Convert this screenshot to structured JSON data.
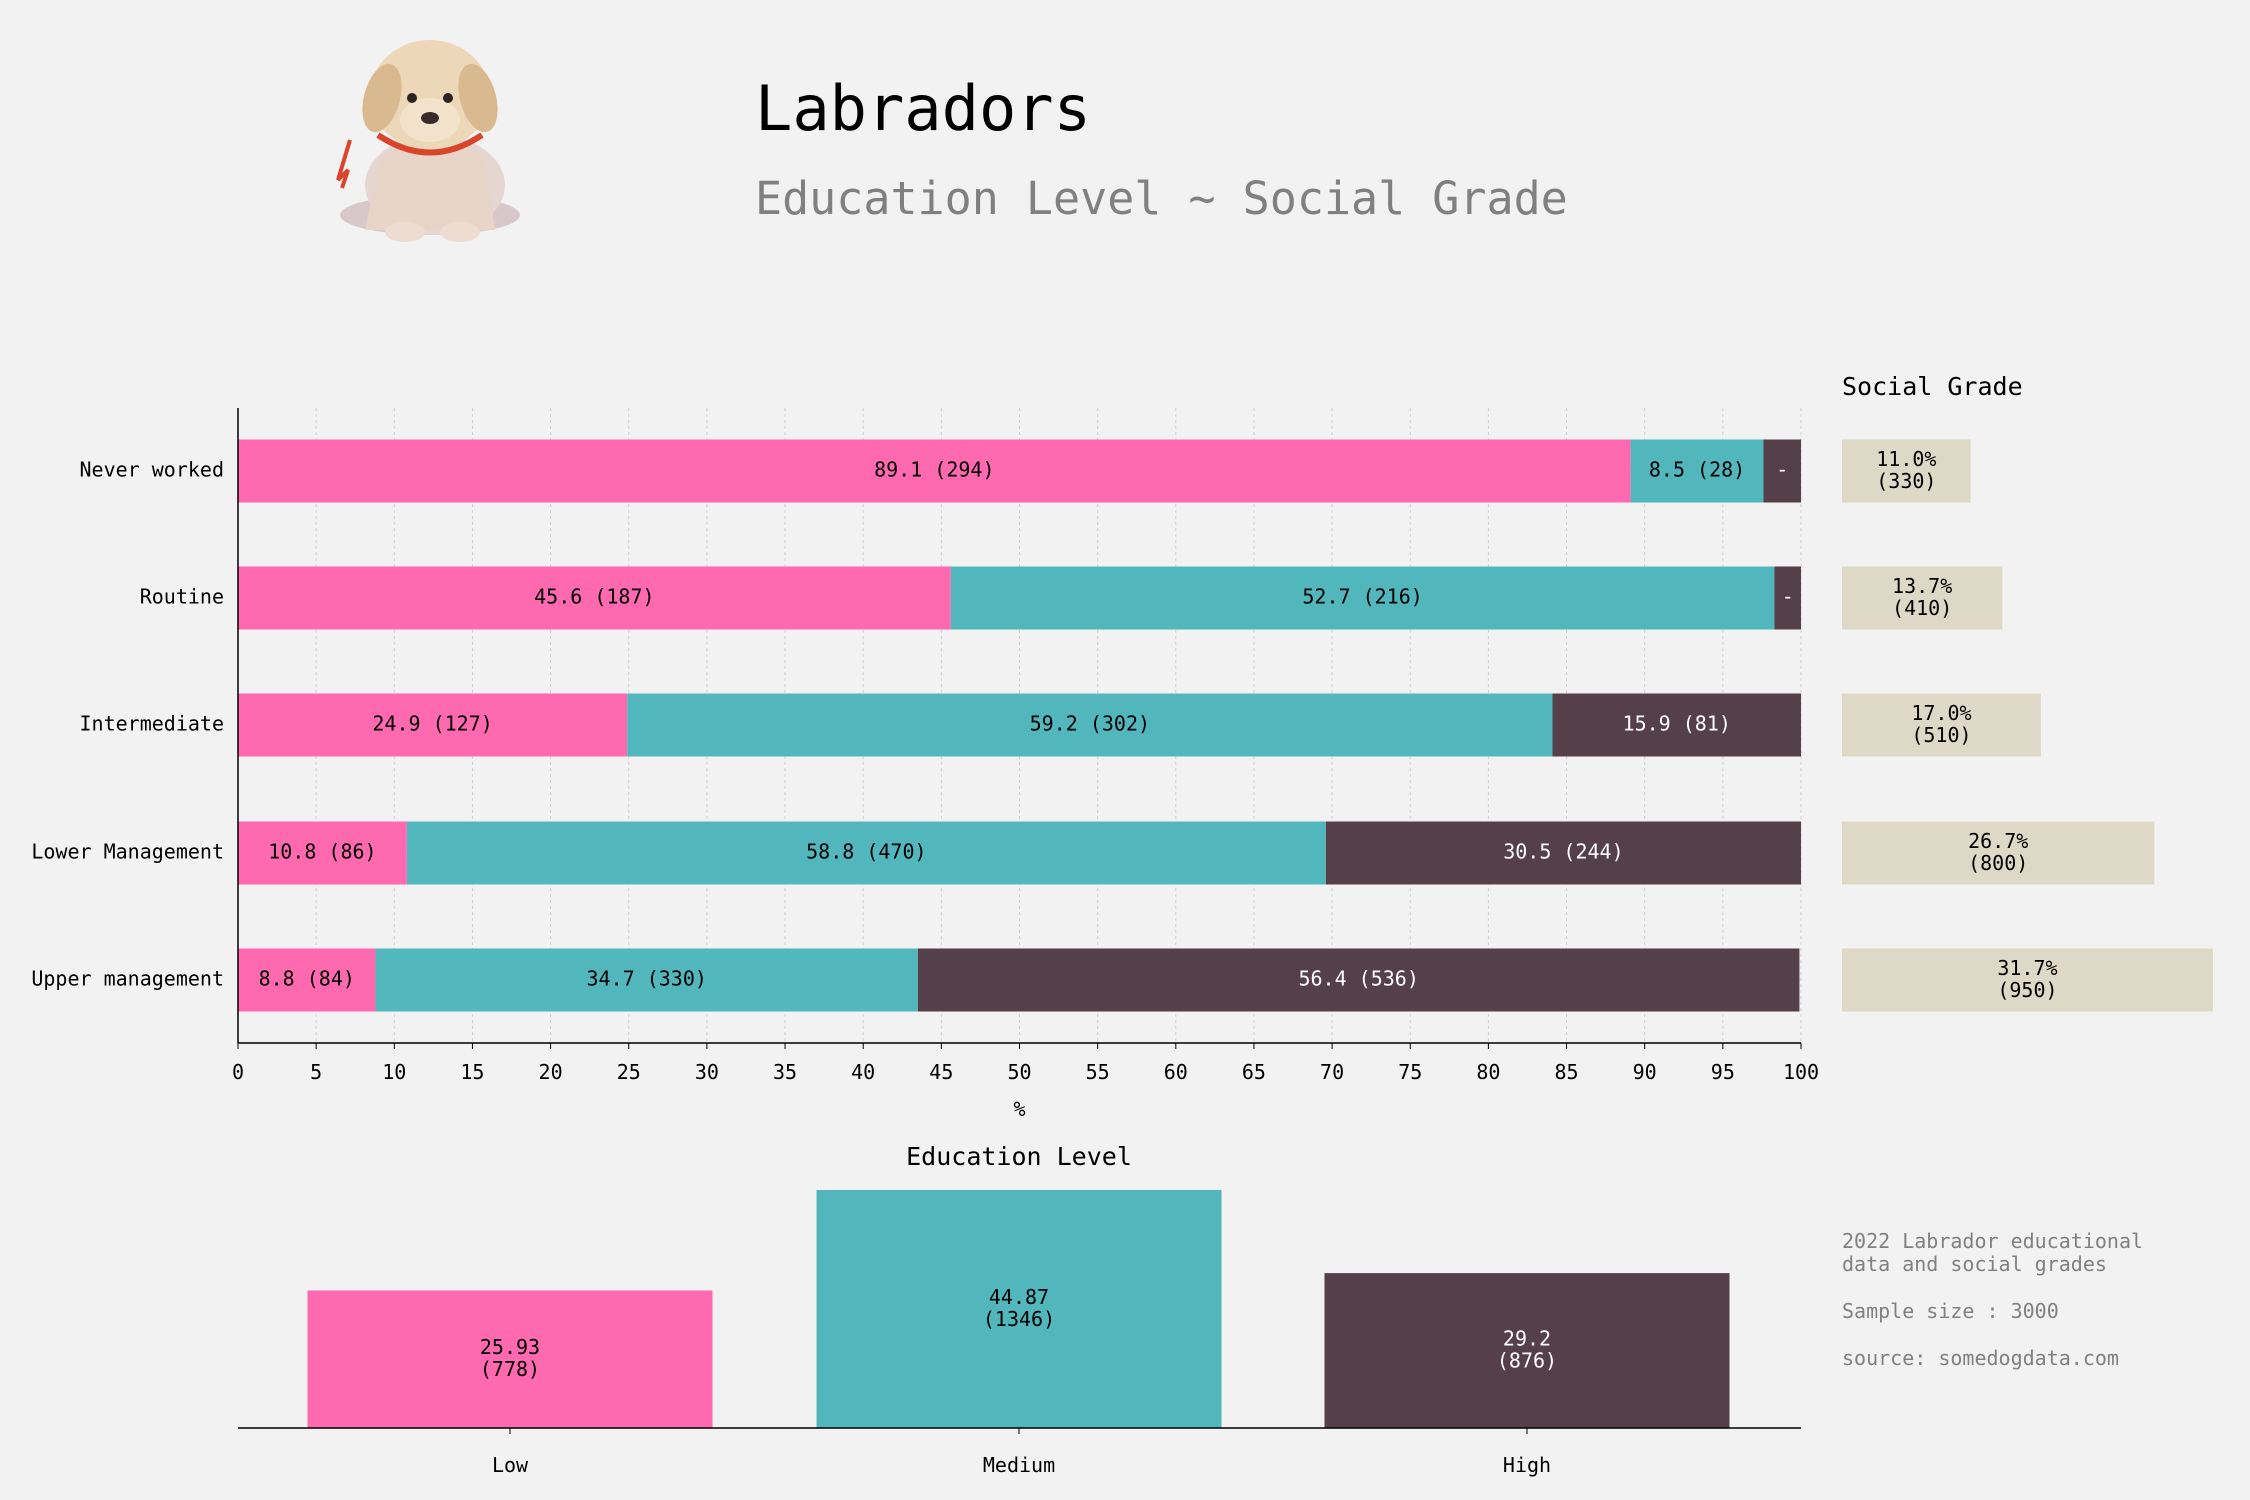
{
  "title": "Labradors",
  "subtitle": "Education Level ~ Social Grade",
  "logo_icon": "labrador-puppy-icon",
  "colors": {
    "low": "#ff69b0",
    "medium": "#52b7bd",
    "high": "#553f48",
    "grade": "#ded8c6",
    "background": "#f2f2f2"
  },
  "notes": [
    "2022 Labrador educational\ndata and social grades",
    "Sample size : 3000",
    "source: somedogdata.com"
  ],
  "chart_data": [
    {
      "type": "bar",
      "orientation": "horizontal",
      "stacked": true,
      "xlabel": "%",
      "xlim": [
        0,
        100
      ],
      "xticks": [
        0,
        5,
        10,
        15,
        20,
        25,
        30,
        35,
        40,
        45,
        50,
        55,
        60,
        65,
        70,
        75,
        80,
        85,
        90,
        95,
        100
      ],
      "grid": true,
      "categories": [
        "Never worked",
        "Routine",
        "Intermediate",
        "Lower Management",
        "Upper management"
      ],
      "series": [
        {
          "key": "low",
          "values": [
            89.1,
            45.6,
            24.9,
            10.8,
            8.8
          ],
          "labels": [
            "89.1 (294)",
            "45.6 (187)",
            "24.9 (127)",
            "10.8 (86)",
            "8.8 (84)"
          ]
        },
        {
          "key": "medium",
          "values": [
            8.5,
            52.7,
            59.2,
            58.8,
            34.7
          ],
          "labels": [
            "8.5 (28)",
            "52.7 (216)",
            "59.2 (302)",
            "58.8 (470)",
            "34.7 (330)"
          ]
        },
        {
          "key": "high",
          "values": [
            2.4,
            1.7,
            15.9,
            30.5,
            56.4
          ],
          "labels": [
            "-",
            "-",
            "15.9 (81)",
            "30.5 (244)",
            "56.4 (536)"
          ]
        }
      ]
    },
    {
      "type": "bar",
      "orientation": "horizontal",
      "title": "Social Grade",
      "categories": [
        "Never worked",
        "Routine",
        "Intermediate",
        "Lower Management",
        "Upper management"
      ],
      "values": [
        11.0,
        13.7,
        17.0,
        26.7,
        31.7
      ],
      "labels": [
        "11.0%\n(330)",
        "13.7%\n(410)",
        "17.0%\n(510)",
        "26.7%\n(800)",
        "31.7%\n(950)"
      ]
    },
    {
      "type": "bar",
      "title": "Education Level",
      "categories": [
        "Low",
        "Medium",
        "High"
      ],
      "values": [
        25.93,
        44.87,
        29.2
      ],
      "labels": [
        "25.93\n(778)",
        "44.87\n(1346)",
        "29.2\n(876)"
      ]
    }
  ]
}
